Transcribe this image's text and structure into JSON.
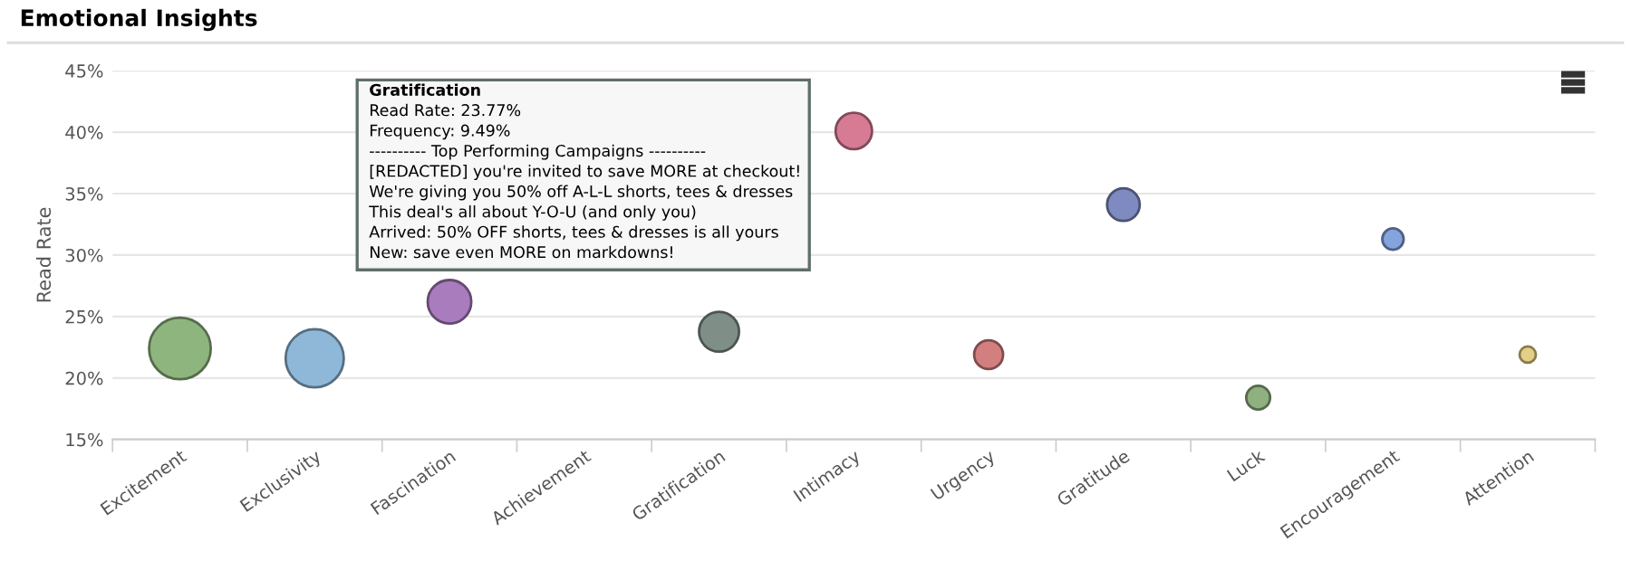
{
  "chart_data": {
    "type": "bubble",
    "title": "Emotional Insights",
    "ylabel": "Read Rate",
    "categories": [
      "Excitement",
      "Exclusivity",
      "Fascination",
      "Achievement",
      "Gratification",
      "Intimacy",
      "Urgency",
      "Gratitude",
      "Luck",
      "Encouragement",
      "Attention"
    ],
    "values": [
      22.4,
      21.6,
      26.2,
      null,
      23.77,
      40.1,
      21.9,
      34.1,
      18.4,
      31.3,
      21.9
    ],
    "sizes": [
      1,
      0.89,
      0.5,
      null,
      0.42,
      0.35,
      0.22,
      0.28,
      0.15,
      0.12,
      0.07
    ],
    "colors": [
      "#8fb57f",
      "#8fb8d8",
      "#a97cbd",
      "#999999",
      "#7f8f88",
      "#d77b95",
      "#d47f7f",
      "#7f8ac0",
      "#8fb07f",
      "#85a3dd",
      "#e3cf85"
    ],
    "ylim": [
      15,
      45
    ],
    "yticks": [
      {
        "value": 15,
        "label": "15%"
      },
      {
        "value": 20,
        "label": "20%"
      },
      {
        "value": 25,
        "label": "25%"
      },
      {
        "value": 30,
        "label": "30%"
      },
      {
        "value": 35,
        "label": "35%"
      },
      {
        "value": 40,
        "label": "40%"
      },
      {
        "value": 45,
        "label": "45%"
      }
    ],
    "grid": "y",
    "legend": false,
    "annotations": [
      "Gratification",
      "Read Rate: 23.77%",
      "Frequency: 9.49%",
      "---------- Top Performing Campaigns ----------",
      "[REDACTED] you're invited to save MORE at checkout!",
      "We're giving you 50% off A-L-L shorts, tees & dresses",
      "This deal's all about Y-O-U (and only you)",
      "Arrived: 50% OFF shorts, tees & dresses is all yours",
      "New: save even MORE on markdowns!"
    ]
  }
}
